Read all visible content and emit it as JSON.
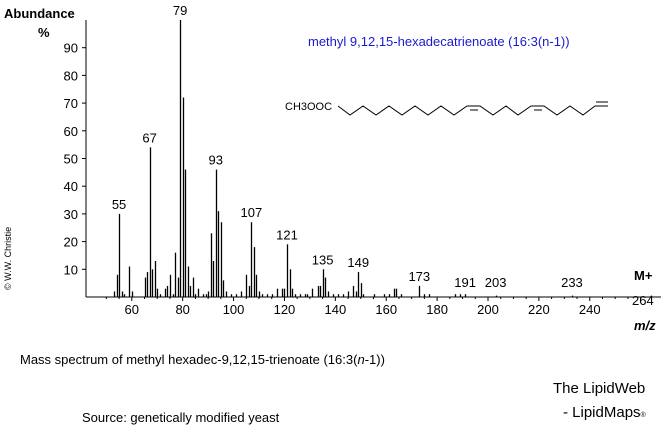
{
  "chart_data": {
    "type": "bar",
    "title": "methyl 9,12,15-hexadecatrienoate  (16:3(n-1))",
    "ylabel": "Abundance",
    "ylabel_unit": "%",
    "xlabel": "m/z",
    "xlim": [
      42,
      268
    ],
    "ylim": [
      0,
      100
    ],
    "x_ticks": [
      60,
      80,
      100,
      120,
      140,
      160,
      180,
      200,
      220,
      240
    ],
    "y_ticks": [
      10,
      20,
      30,
      40,
      50,
      60,
      70,
      80,
      90
    ],
    "molecular_ion_label": "M+",
    "molecular_ion_mz": "264",
    "structure_label": "CH3OOC",
    "line_color": "#000000",
    "title_color": "#1a1acc",
    "peaks": [
      {
        "mz": 53,
        "abundance": 2
      },
      {
        "mz": 54,
        "abundance": 8
      },
      {
        "mz": 55,
        "abundance": 30
      },
      {
        "mz": 56,
        "abundance": 2
      },
      {
        "mz": 57,
        "abundance": 1
      },
      {
        "mz": 59,
        "abundance": 11
      },
      {
        "mz": 60,
        "abundance": 2
      },
      {
        "mz": 65,
        "abundance": 7
      },
      {
        "mz": 66,
        "abundance": 9
      },
      {
        "mz": 67,
        "abundance": 54
      },
      {
        "mz": 68,
        "abundance": 10
      },
      {
        "mz": 69,
        "abundance": 13
      },
      {
        "mz": 70,
        "abundance": 3
      },
      {
        "mz": 71,
        "abundance": 1
      },
      {
        "mz": 73,
        "abundance": 3
      },
      {
        "mz": 74,
        "abundance": 4
      },
      {
        "mz": 75,
        "abundance": 8
      },
      {
        "mz": 76,
        "abundance": 1
      },
      {
        "mz": 77,
        "abundance": 16
      },
      {
        "mz": 78,
        "abundance": 7
      },
      {
        "mz": 79,
        "abundance": 100
      },
      {
        "mz": 80,
        "abundance": 72
      },
      {
        "mz": 81,
        "abundance": 46
      },
      {
        "mz": 82,
        "abundance": 11
      },
      {
        "mz": 83,
        "abundance": 4
      },
      {
        "mz": 84,
        "abundance": 7
      },
      {
        "mz": 85,
        "abundance": 1
      },
      {
        "mz": 86,
        "abundance": 3
      },
      {
        "mz": 88,
        "abundance": 1
      },
      {
        "mz": 89,
        "abundance": 1
      },
      {
        "mz": 90,
        "abundance": 2
      },
      {
        "mz": 91,
        "abundance": 23
      },
      {
        "mz": 92,
        "abundance": 13
      },
      {
        "mz": 93,
        "abundance": 46
      },
      {
        "mz": 94,
        "abundance": 31
      },
      {
        "mz": 95,
        "abundance": 27
      },
      {
        "mz": 96,
        "abundance": 6
      },
      {
        "mz": 97,
        "abundance": 2
      },
      {
        "mz": 99,
        "abundance": 1
      },
      {
        "mz": 101,
        "abundance": 1
      },
      {
        "mz": 103,
        "abundance": 2
      },
      {
        "mz": 105,
        "abundance": 8
      },
      {
        "mz": 106,
        "abundance": 4
      },
      {
        "mz": 107,
        "abundance": 27
      },
      {
        "mz": 108,
        "abundance": 18
      },
      {
        "mz": 109,
        "abundance": 8
      },
      {
        "mz": 110,
        "abundance": 2
      },
      {
        "mz": 111,
        "abundance": 1
      },
      {
        "mz": 113,
        "abundance": 1
      },
      {
        "mz": 115,
        "abundance": 1
      },
      {
        "mz": 117,
        "abundance": 3
      },
      {
        "mz": 119,
        "abundance": 3
      },
      {
        "mz": 120,
        "abundance": 3
      },
      {
        "mz": 121,
        "abundance": 19
      },
      {
        "mz": 122,
        "abundance": 10
      },
      {
        "mz": 123,
        "abundance": 3
      },
      {
        "mz": 124,
        "abundance": 1
      },
      {
        "mz": 126,
        "abundance": 1
      },
      {
        "mz": 128,
        "abundance": 1
      },
      {
        "mz": 129,
        "abundance": 1
      },
      {
        "mz": 131,
        "abundance": 3
      },
      {
        "mz": 133,
        "abundance": 4
      },
      {
        "mz": 134,
        "abundance": 4
      },
      {
        "mz": 135,
        "abundance": 10
      },
      {
        "mz": 136,
        "abundance": 7
      },
      {
        "mz": 137,
        "abundance": 2
      },
      {
        "mz": 139,
        "abundance": 1
      },
      {
        "mz": 141,
        "abundance": 1
      },
      {
        "mz": 143,
        "abundance": 1
      },
      {
        "mz": 145,
        "abundance": 2
      },
      {
        "mz": 147,
        "abundance": 4
      },
      {
        "mz": 148,
        "abundance": 2
      },
      {
        "mz": 149,
        "abundance": 9
      },
      {
        "mz": 150,
        "abundance": 5
      },
      {
        "mz": 151,
        "abundance": 1
      },
      {
        "mz": 155,
        "abundance": 1
      },
      {
        "mz": 159,
        "abundance": 1
      },
      {
        "mz": 161,
        "abundance": 1
      },
      {
        "mz": 163,
        "abundance": 3
      },
      {
        "mz": 164,
        "abundance": 3
      },
      {
        "mz": 166,
        "abundance": 1
      },
      {
        "mz": 173,
        "abundance": 4
      },
      {
        "mz": 175,
        "abundance": 1
      },
      {
        "mz": 177,
        "abundance": 1
      },
      {
        "mz": 187,
        "abundance": 1
      },
      {
        "mz": 189,
        "abundance": 1
      },
      {
        "mz": 191,
        "abundance": 1
      },
      {
        "mz": 203,
        "abundance": 0.5
      },
      {
        "mz": 233,
        "abundance": 0.5
      },
      {
        "mz": 264,
        "abundance": 0.5
      }
    ],
    "labeled_peaks": [
      {
        "mz": 55,
        "abundance": 30,
        "label": "55"
      },
      {
        "mz": 67,
        "abundance": 54,
        "label": "67"
      },
      {
        "mz": 79,
        "abundance": 100,
        "label": "79"
      },
      {
        "mz": 93,
        "abundance": 46,
        "label": "93"
      },
      {
        "mz": 107,
        "abundance": 27,
        "label": "107"
      },
      {
        "mz": 121,
        "abundance": 19,
        "label": "121"
      },
      {
        "mz": 135,
        "abundance": 10,
        "label": "135"
      },
      {
        "mz": 149,
        "abundance": 9,
        "label": "149"
      },
      {
        "mz": 173,
        "abundance": 4,
        "label": "173"
      },
      {
        "mz": 191,
        "abundance": 1,
        "label": "191"
      },
      {
        "mz": 203,
        "abundance": 0.5,
        "label": "203"
      },
      {
        "mz": 233,
        "abundance": 0.5,
        "label": "233"
      }
    ]
  },
  "caption": {
    "title_pre": "Mass spectrum of methyl hexadec-9,12,15-trienoate (16:3(",
    "title_n": "n",
    "title_post": "-1))",
    "source": "Source:  genetically modified yeast"
  },
  "brand": {
    "line1": "The LipidWeb",
    "line2": "- LipidMaps",
    "reg": "®"
  },
  "copyright": "© W.W. Christie"
}
